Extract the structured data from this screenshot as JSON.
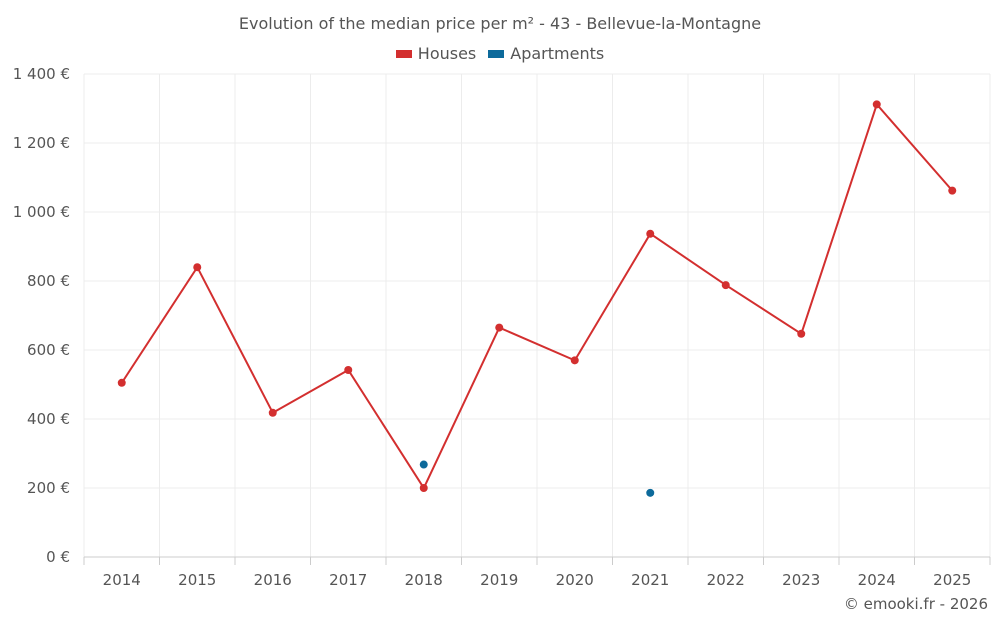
{
  "colors": {
    "houses": "#d32f2f",
    "apartments": "#0d6a9b",
    "grid": "#ececec",
    "axis": "#cccccc",
    "text": "#555555"
  },
  "chart_data": {
    "type": "line",
    "title": "Evolution of the median price per m² - 43 - Bellevue-la-Montagne",
    "xlabel": "",
    "ylabel": "",
    "categories": [
      "2014",
      "2015",
      "2016",
      "2017",
      "2018",
      "2019",
      "2020",
      "2021",
      "2022",
      "2023",
      "2024",
      "2025"
    ],
    "ylim": [
      0,
      1400
    ],
    "yticks": [
      0,
      200,
      400,
      600,
      800,
      1000,
      1200,
      1400
    ],
    "ytick_labels": [
      "0 €",
      "200 €",
      "400 €",
      "600 €",
      "800 €",
      "1 000 €",
      "1 200 €",
      "1 400 €"
    ],
    "grid": true,
    "legend_position": "top-center",
    "series": [
      {
        "name": "Houses",
        "color_key": "houses",
        "values": [
          505,
          840,
          418,
          542,
          200,
          665,
          570,
          937,
          788,
          647,
          1312,
          1062
        ]
      },
      {
        "name": "Apartments",
        "color_key": "apartments",
        "values": [
          null,
          null,
          null,
          null,
          268,
          null,
          null,
          186,
          null,
          null,
          null,
          null
        ]
      }
    ]
  },
  "credit": "© emooki.fr - 2026"
}
